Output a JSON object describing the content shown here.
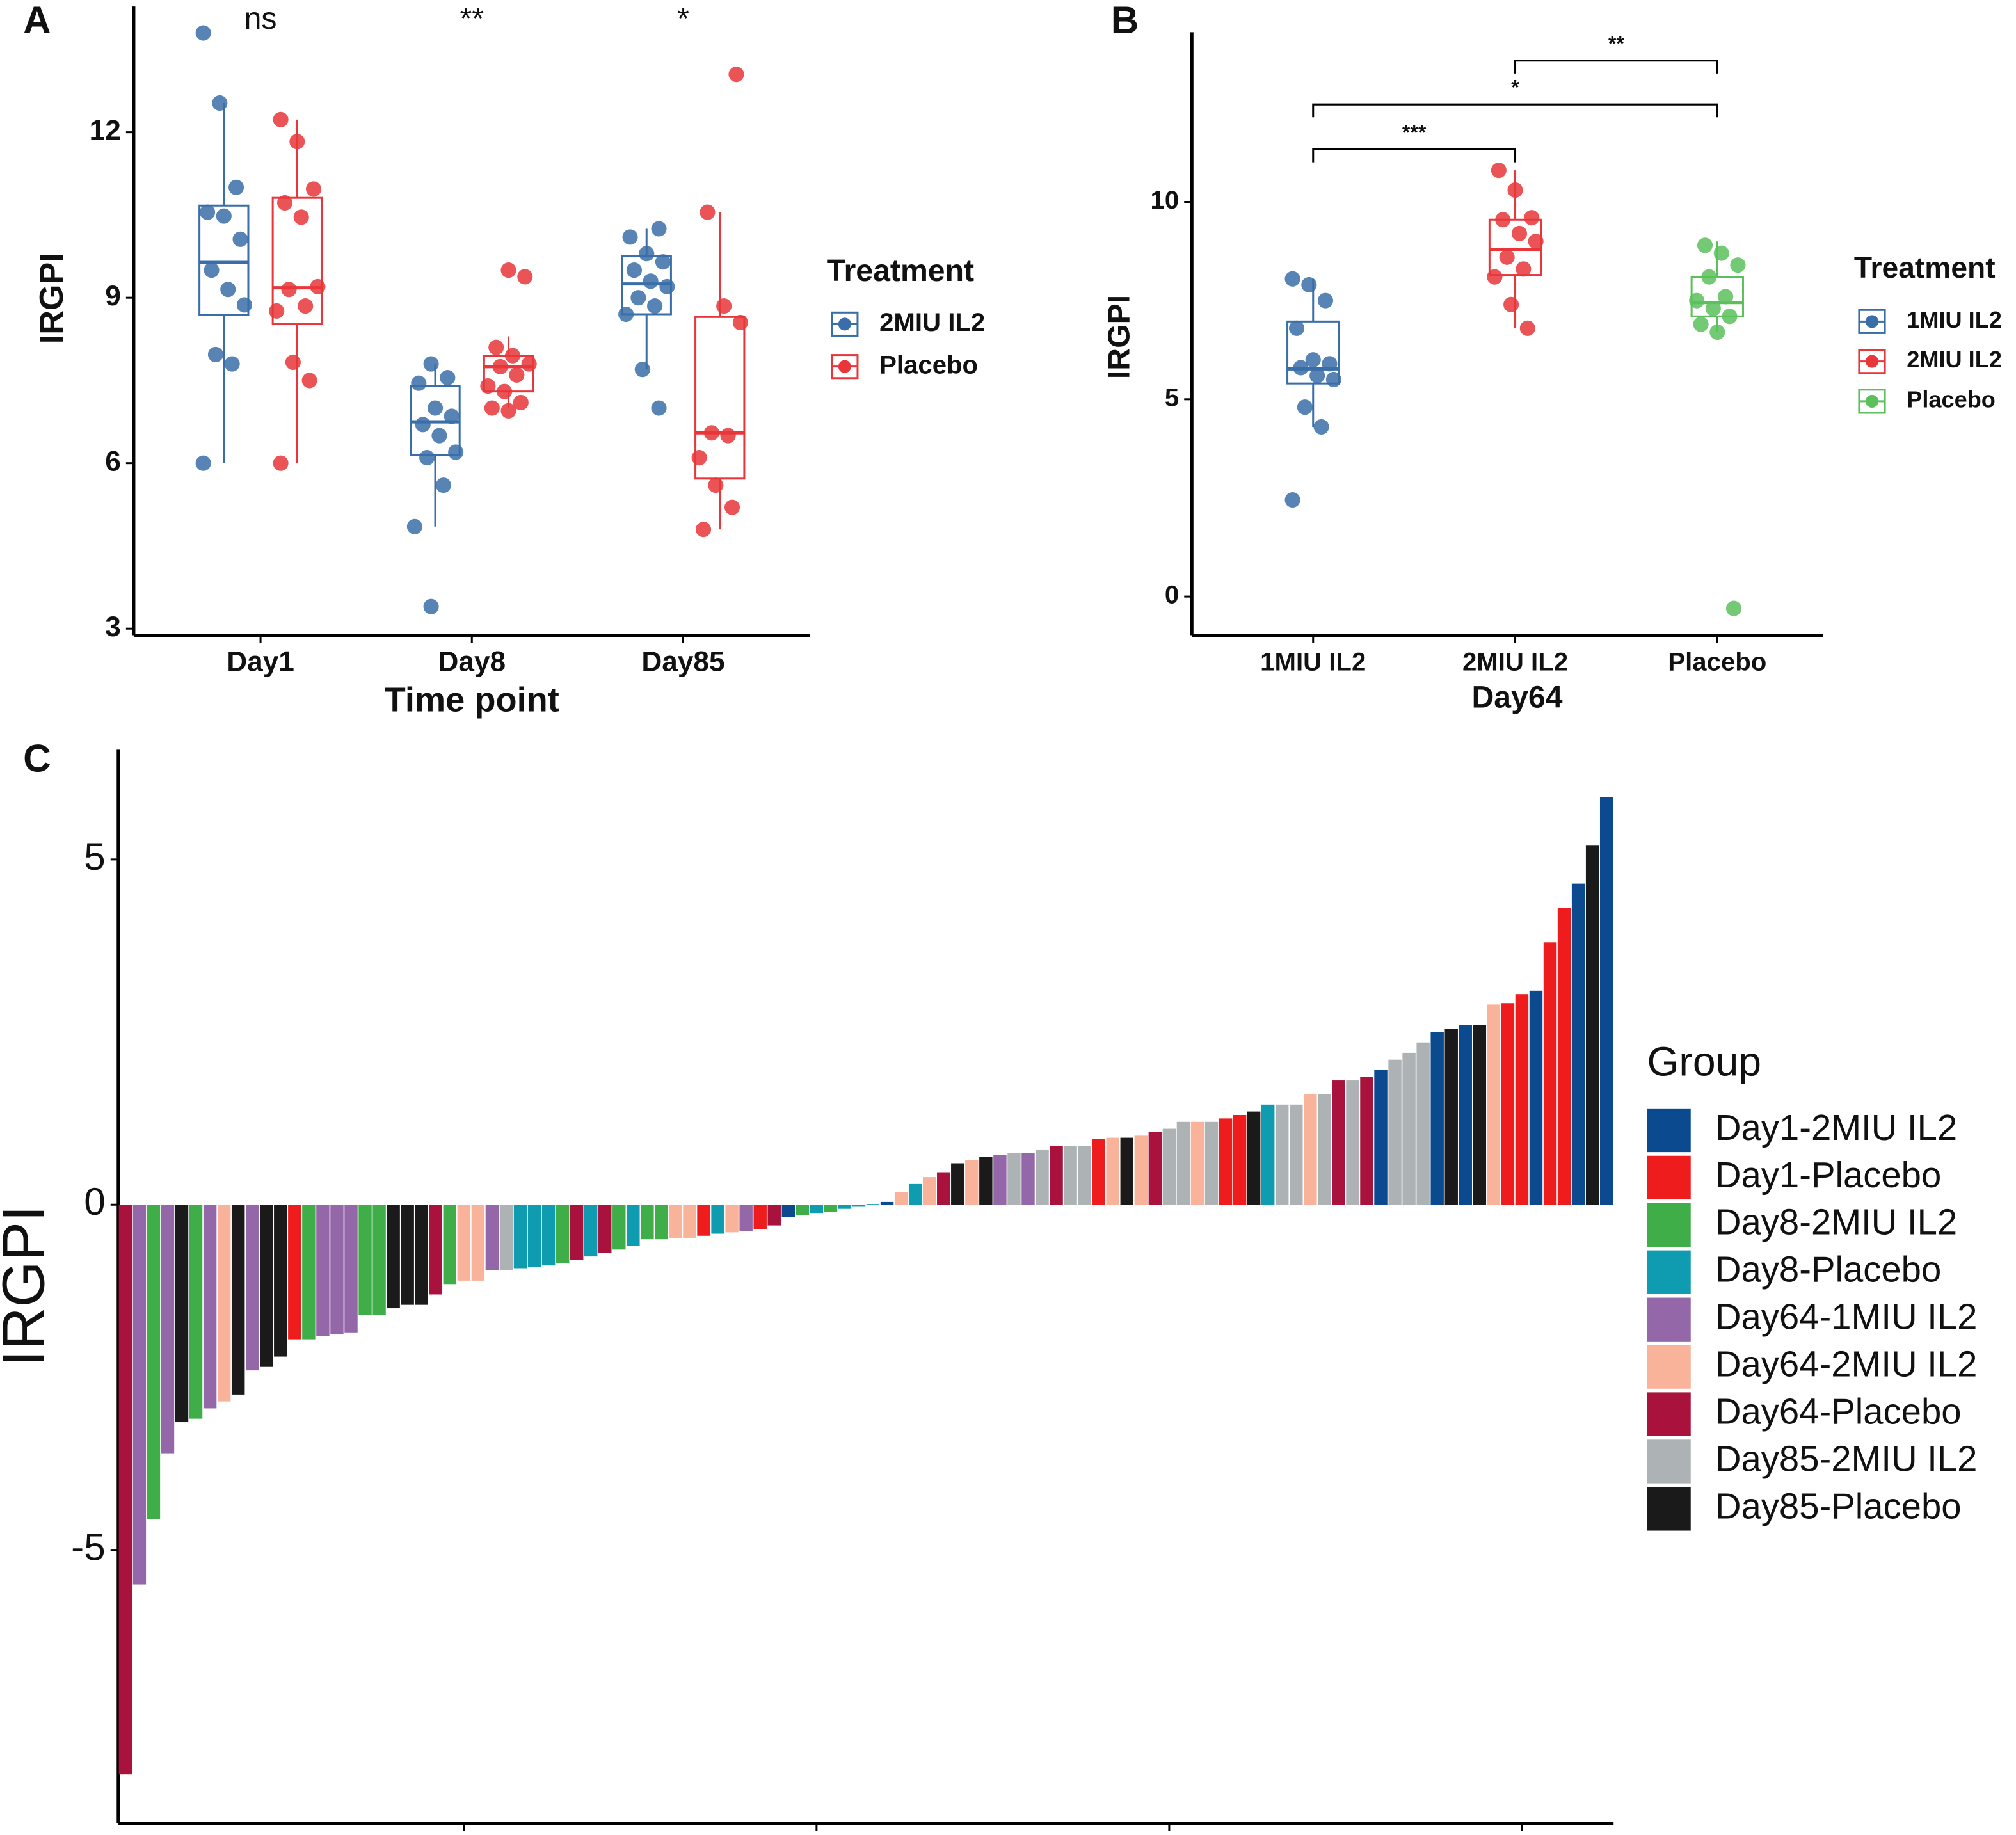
{
  "chart_data": [
    {
      "type": "box",
      "panel": "A",
      "x_label": "Time point",
      "y_label": "IRGPI",
      "legend_title": "Treatment",
      "categories": [
        "Day1",
        "Day8",
        "Day85"
      ],
      "annotations": [
        "ns",
        "**",
        "*"
      ],
      "ylim": [
        2.88,
        14.28
      ],
      "yticks": [
        3,
        6,
        9,
        12
      ],
      "series": [
        {
          "name": "2MIU IL2",
          "color": "#3a6ea8",
          "boxes": [
            {
              "min": 6.0,
              "q1": 8.69,
              "median": 9.64,
              "q3": 10.67,
              "max": 12.53,
              "points": [
                13.8,
                12.53,
                11.0,
                10.55,
                10.48,
                10.06,
                9.5,
                9.15,
                8.87,
                7.97,
                7.8,
                6.0
              ]
            },
            {
              "min": 4.85,
              "q1": 6.15,
              "median": 6.75,
              "q3": 7.4,
              "max": 7.8,
              "points": [
                7.8,
                7.55,
                7.45,
                7.0,
                6.85,
                6.7,
                6.5,
                6.2,
                6.1,
                5.6,
                4.85,
                3.4
              ]
            },
            {
              "min": 7.7,
              "q1": 8.7,
              "median": 9.25,
              "q3": 9.75,
              "max": 10.25,
              "points": [
                10.25,
                10.1,
                9.8,
                9.65,
                9.5,
                9.3,
                9.2,
                9.0,
                8.85,
                8.7,
                7.7,
                7.0
              ]
            }
          ]
        },
        {
          "name": "Placebo",
          "color": "#e8363a",
          "boxes": [
            {
              "min": 6.0,
              "q1": 8.52,
              "median": 9.18,
              "q3": 10.81,
              "max": 12.23,
              "points": [
                12.23,
                11.83,
                10.97,
                10.72,
                10.46,
                9.2,
                9.15,
                8.85,
                8.76,
                7.83,
                7.5,
                6.0
              ]
            },
            {
              "min": 7.0,
              "q1": 7.3,
              "median": 7.75,
              "q3": 7.95,
              "max": 8.3,
              "points": [
                9.5,
                9.38,
                8.1,
                7.95,
                7.8,
                7.75,
                7.6,
                7.4,
                7.3,
                7.1,
                7.0,
                6.95
              ]
            },
            {
              "min": 4.8,
              "q1": 5.72,
              "median": 6.55,
              "q3": 8.65,
              "max": 10.55,
              "points": [
                13.05,
                10.55,
                8.85,
                8.55,
                6.55,
                6.5,
                6.1,
                5.6,
                5.2,
                4.8
              ]
            }
          ]
        }
      ]
    },
    {
      "type": "box",
      "panel": "B",
      "x_label": "Day64",
      "y_label": "IRGPI",
      "legend_title": "Treatment",
      "categories": [
        "1MIU IL2",
        "2MIU IL2",
        "Placebo"
      ],
      "ylim": [
        -0.98,
        14.3
      ],
      "yticks": [
        0,
        5,
        10
      ],
      "brackets": [
        {
          "from": 0,
          "to": 1,
          "y": 11.33,
          "label": "***"
        },
        {
          "from": 0,
          "to": 2,
          "y": 12.47,
          "label": "*"
        },
        {
          "from": 1,
          "to": 2,
          "y": 13.58,
          "label": "**"
        }
      ],
      "series": [
        {
          "name": "1MIU IL2",
          "color": "#3a6ea8",
          "boxes": [
            {
              "min": 4.3,
              "q1": 5.4,
              "median": 5.77,
              "q3": 6.97,
              "max": 8.05,
              "points": [
                8.05,
                7.9,
                7.5,
                6.8,
                6.0,
                5.9,
                5.8,
                5.6,
                5.5,
                4.8,
                4.3,
                2.45
              ]
            }
          ]
        },
        {
          "name": "2MIU IL2",
          "color": "#e8363a",
          "boxes": [
            {
              "min": 6.8,
              "q1": 8.15,
              "median": 8.8,
              "q3": 9.55,
              "max": 10.8,
              "points": [
                10.8,
                10.3,
                9.6,
                9.55,
                9.2,
                9.0,
                8.6,
                8.3,
                8.1,
                7.4,
                6.8
              ]
            }
          ]
        },
        {
          "name": "Placebo",
          "color": "#5cbf5c",
          "boxes": [
            {
              "min": 6.7,
              "q1": 7.1,
              "median": 7.45,
              "q3": 8.1,
              "max": 9.0,
              "points": [
                8.9,
                8.7,
                8.4,
                8.1,
                7.6,
                7.5,
                7.3,
                7.1,
                6.9,
                6.7,
                -0.3
              ]
            }
          ]
        }
      ]
    },
    {
      "type": "bar",
      "panel": "C",
      "y_label": "IRGPI",
      "legend_title": "Group",
      "xlim": [
        0.5,
        106.5
      ],
      "xticks": [
        25,
        50,
        75,
        100
      ],
      "ylim": [
        -8.96,
        6.59
      ],
      "yticks": [
        -5,
        0,
        5
      ],
      "series": [
        {
          "name": "Day1-2MIU IL2",
          "color": "#0b4a8f",
          "x": [
            48,
            55,
            90,
            94,
            96,
            101,
            104,
            106
          ],
          "values": [
            -0.18,
            0.04,
            1.95,
            2.5,
            2.6,
            3.1,
            4.65,
            5.9
          ]
        },
        {
          "name": "Day1-Placebo",
          "color": "#ee1c1c",
          "x": [
            13,
            42,
            46,
            70,
            79,
            80,
            99,
            100,
            102,
            103
          ],
          "values": [
            -1.95,
            -0.45,
            -0.35,
            0.95,
            1.25,
            1.3,
            2.92,
            3.05,
            3.8,
            4.3
          ]
        },
        {
          "name": "Day8-2MIU IL2",
          "color": "#3fae49",
          "x": [
            3,
            6,
            14,
            18,
            19,
            24,
            32,
            36,
            38,
            39,
            49,
            51
          ],
          "values": [
            -4.55,
            -3.1,
            -1.95,
            -1.6,
            -1.6,
            -1.15,
            -0.85,
            -0.65,
            -0.5,
            -0.5,
            -0.15,
            -0.1
          ]
        },
        {
          "name": "Day8-Placebo",
          "color": "#0f9bb0",
          "x": [
            29,
            30,
            31,
            34,
            37,
            43,
            50,
            52,
            53,
            54,
            57,
            82
          ],
          "values": [
            -0.92,
            -0.9,
            -0.88,
            -0.75,
            -0.6,
            -0.42,
            -0.12,
            -0.06,
            -0.03,
            0.01,
            0.3,
            1.45
          ]
        },
        {
          "name": "Day64-1MIU IL2",
          "color": "#9467a8",
          "x": [
            2,
            4,
            7,
            10,
            15,
            16,
            17,
            27,
            45,
            63,
            65
          ],
          "values": [
            -5.5,
            -3.6,
            -2.95,
            -2.4,
            -1.9,
            -1.88,
            -1.85,
            -0.95,
            -0.38,
            0.72,
            0.75
          ]
        },
        {
          "name": "Day64-2MIU IL2",
          "color": "#f9b39a",
          "x": [
            8,
            25,
            26,
            40,
            41,
            44,
            56,
            58,
            61,
            71,
            73,
            77,
            85,
            98
          ],
          "values": [
            -2.85,
            -1.1,
            -1.1,
            -0.48,
            -0.48,
            -0.4,
            0.18,
            0.4,
            0.65,
            0.97,
            1.0,
            1.2,
            1.6,
            2.9
          ]
        },
        {
          "name": "Day64-Placebo",
          "color": "#a8123c",
          "x": [
            1,
            23,
            33,
            35,
            47,
            59,
            67,
            74,
            87,
            89
          ],
          "values": [
            -8.25,
            -1.3,
            -0.8,
            -0.7,
            -0.3,
            0.47,
            0.85,
            1.05,
            1.8,
            1.85
          ]
        },
        {
          "name": "Day85-2MIU IL2",
          "color": "#adb3b5",
          "x": [
            28,
            64,
            66,
            68,
            69,
            75,
            76,
            78,
            83,
            84,
            86,
            88,
            91,
            92,
            93
          ],
          "values": [
            -0.95,
            0.75,
            0.8,
            0.85,
            0.85,
            1.1,
            1.2,
            1.2,
            1.45,
            1.45,
            1.6,
            1.8,
            2.1,
            2.2,
            2.35
          ]
        },
        {
          "name": "Day85-Placebo",
          "color": "#1a1a1a",
          "x": [
            5,
            9,
            11,
            12,
            20,
            21,
            22,
            60,
            62,
            72,
            81,
            95,
            97,
            105
          ],
          "values": [
            -3.15,
            -2.75,
            -2.35,
            -2.2,
            -1.5,
            -1.45,
            -1.45,
            0.6,
            0.69,
            0.97,
            1.35,
            2.55,
            2.6,
            5.2
          ]
        }
      ]
    }
  ]
}
